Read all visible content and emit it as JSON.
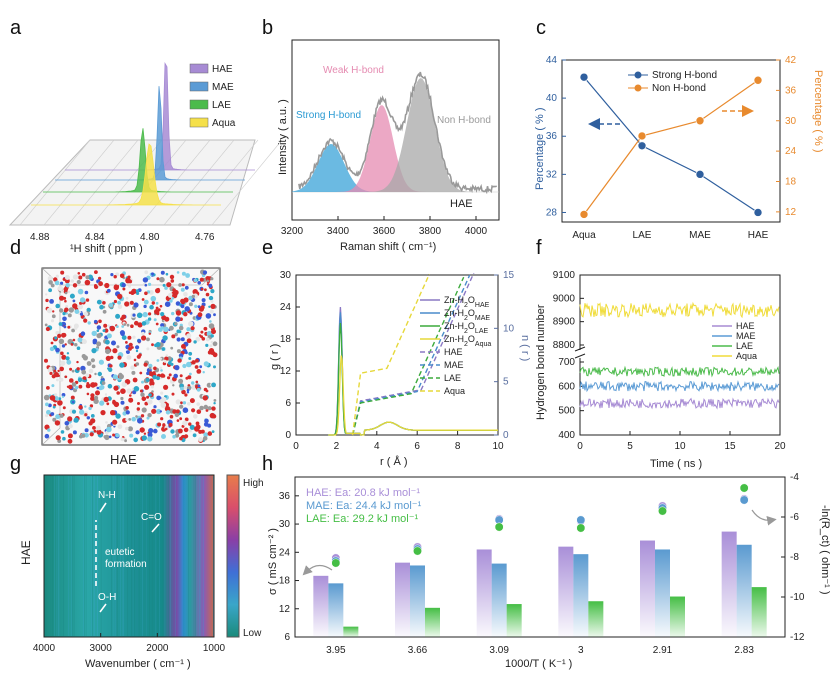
{
  "chart_data": [
    {
      "id": "a",
      "type": "area",
      "panel_label": "a",
      "xlabel": "¹H shift ( ppm )",
      "x_ticks": [
        "4.88",
        "4.84",
        "4.80",
        "4.76"
      ],
      "series": [
        {
          "name": "HAE",
          "color": "#a78bd4",
          "peak": 4.815,
          "width": 0.003
        },
        {
          "name": "MAE",
          "color": "#5b9bd5",
          "peak": 4.812,
          "width": 0.003
        },
        {
          "name": "LAE",
          "color": "#4cbb4c",
          "peak": 4.816,
          "width": 0.004
        },
        {
          "name": "Aqua",
          "color": "#f5e04a",
          "peak": 4.8,
          "width": 0.006
        }
      ]
    },
    {
      "id": "b",
      "type": "area",
      "panel_label": "b",
      "xlabel": "Raman shift ( cm⁻¹)",
      "ylabel": "Intensity ( a.u. )",
      "x_ticks": [
        3200,
        3400,
        3600,
        3800,
        4000
      ],
      "xlim": [
        3200,
        4100
      ],
      "legend_text": "HAE",
      "components": [
        {
          "name": "Strong H-bond",
          "center": 3370,
          "width": 80,
          "height": 0.32,
          "color": "#3aa3d8"
        },
        {
          "name": "Weak H-bond",
          "center": 3590,
          "width": 70,
          "height": 0.58,
          "color": "#e58bb1"
        },
        {
          "name": "Non H-bond",
          "center": 3760,
          "width": 85,
          "height": 0.76,
          "color": "#a8a8a8"
        }
      ]
    },
    {
      "id": "c",
      "type": "line",
      "panel_label": "c",
      "categories": [
        "Aqua",
        "LAE",
        "MAE",
        "HAE"
      ],
      "ylabel": "Percentage ( % )",
      "y2label": "Percentage ( % )",
      "ylim": [
        27,
        44
      ],
      "y_ticks": [
        28,
        32,
        36,
        40,
        44
      ],
      "y2lim": [
        10,
        42
      ],
      "y2_ticks": [
        12,
        18,
        24,
        30,
        36,
        42
      ],
      "series": [
        {
          "name": "Strong H-bond",
          "axis": "left",
          "color": "#2f5f9e",
          "values": [
            42.2,
            35.0,
            32.0,
            28.0
          ]
        },
        {
          "name": "Non H-bond",
          "axis": "right",
          "color": "#e88a2e",
          "values": [
            11.5,
            27.0,
            30.0,
            38.0
          ]
        }
      ]
    },
    {
      "id": "e",
      "type": "line",
      "panel_label": "e",
      "xlabel": "r ( Å )",
      "ylabel": "g ( r )",
      "y2label": "n ( r )",
      "xlim": [
        0,
        10
      ],
      "x_ticks": [
        0,
        2,
        4,
        6,
        8,
        10
      ],
      "ylim": [
        0,
        30
      ],
      "y_ticks": [
        0,
        6,
        12,
        18,
        24,
        30
      ],
      "y2lim": [
        0,
        15
      ],
      "y2_ticks": [
        0,
        5,
        10,
        15
      ],
      "legend": [
        {
          "base": "Zn-H",
          "sub1": "2",
          "mid": "O",
          "sub2": "HAE",
          "color": "#8a78c4",
          "dash": false
        },
        {
          "base": "Zn-H",
          "sub1": "2",
          "mid": "O",
          "sub2": "MAE",
          "color": "#4a8ccb",
          "dash": false
        },
        {
          "base": "Zn-H",
          "sub1": "2",
          "mid": "O",
          "sub2": "LAE",
          "color": "#3caa3c",
          "dash": false
        },
        {
          "base": "Zn-H",
          "sub1": "2",
          "mid": "O",
          "sub2": "Aqua",
          "color": "#e6d83a",
          "dash": false
        },
        {
          "base": "HAE",
          "color": "#8a78c4",
          "dash": true
        },
        {
          "base": "MAE",
          "color": "#4a8ccb",
          "dash": true
        },
        {
          "base": "LAE",
          "color": "#3caa3c",
          "dash": true
        },
        {
          "base": "Aqua",
          "color": "#e6d83a",
          "dash": true
        }
      ],
      "rdf_peaks": [
        {
          "name": "HAE",
          "color": "#8a78c4",
          "peak": 24,
          "r0": 2.2
        },
        {
          "name": "MAE",
          "color": "#4a8ccb",
          "peak": 23,
          "r0": 2.2
        },
        {
          "name": "LAE",
          "color": "#3caa3c",
          "peak": 21,
          "r0": 2.2
        },
        {
          "name": "Aqua",
          "color": "#e6d83a",
          "peak": 15,
          "r0": 2.25
        }
      ],
      "cn_curves": [
        {
          "name": "HAE",
          "color": "#8a78c4",
          "plateau": 3.2,
          "rise": 6.2
        },
        {
          "name": "MAE",
          "color": "#4a8ccb",
          "plateau": 3.1,
          "rise": 6.0
        },
        {
          "name": "LAE",
          "color": "#3caa3c",
          "plateau": 3.0,
          "rise": 5.7
        },
        {
          "name": "Aqua",
          "color": "#e6d83a",
          "plateau": 5.8,
          "rise": 4.5
        }
      ]
    },
    {
      "id": "f",
      "type": "line",
      "panel_label": "f",
      "xlabel": "Time ( ns )",
      "ylabel": "Hydrogen bond number",
      "xlim": [
        0,
        20
      ],
      "x_ticks": [
        0,
        5,
        10,
        15,
        20
      ],
      "y_ticks_lower": [
        400,
        500,
        600,
        700
      ],
      "y_ticks_upper": [
        8800,
        8900,
        9000,
        9100
      ],
      "series": [
        {
          "name": "HAE",
          "color": "#a78bd4",
          "mean": 530,
          "noise": 20
        },
        {
          "name": "MAE",
          "color": "#5b9bd5",
          "mean": 600,
          "noise": 20
        },
        {
          "name": "LAE",
          "color": "#4cbb4c",
          "mean": 660,
          "noise": 18
        },
        {
          "name": "Aqua",
          "color": "#f0dc3a",
          "mean": 8950,
          "noise": 30
        }
      ]
    },
    {
      "id": "g",
      "type": "heatmap",
      "panel_label": "g",
      "xlabel": "Wavenumber ( cm⁻¹ )",
      "ylabel": "HAE",
      "xlim": [
        4000,
        1000
      ],
      "x_ticks": [
        4000,
        3000,
        2000,
        1000
      ],
      "colorbar": {
        "high": "High",
        "low": "Low"
      },
      "annotations": [
        "N-H",
        "C=O",
        "eutetic",
        "formation",
        "O-H"
      ]
    },
    {
      "id": "h",
      "type": "bar",
      "panel_label": "h",
      "categories": [
        "3.95",
        "3.66",
        "3.09",
        "3",
        "2.91",
        "2.83"
      ],
      "xlabel": "1000/T ( K⁻¹ )",
      "ylabel": "σ ( mS cm⁻² )",
      "y2label": "-ln(R_ct) ( ohm⁻¹ )",
      "ylim": [
        6,
        40
      ],
      "y_ticks": [
        6,
        12,
        18,
        24,
        30,
        36
      ],
      "y2lim": [
        -12,
        -4
      ],
      "y2_ticks": [
        -12,
        -10,
        -8,
        -6,
        -4
      ],
      "ea": [
        "HAE: Ea: 20.8 kJ mol⁻¹",
        "MAE: Ea: 24.4 kJ mol⁻¹",
        "LAE: Ea: 29.2 kJ mol⁻¹"
      ],
      "series": [
        {
          "name": "HAE",
          "color": "#a98fd8",
          "values": [
            19,
            21.8,
            24.6,
            25.2,
            26.5,
            28.4
          ]
        },
        {
          "name": "MAE",
          "color": "#5a9ad0",
          "values": [
            17.4,
            21.2,
            21.6,
            23.6,
            24.6,
            25.6
          ]
        },
        {
          "name": "LAE",
          "color": "#45be45",
          "values": [
            8.2,
            12.2,
            13,
            13.6,
            14.6,
            16.6
          ]
        }
      ],
      "scatter": [
        {
          "name": "HAE",
          "color": "#a98fd8",
          "values": [
            -8.05,
            -7.5,
            -6.1,
            -6.2,
            -5.45,
            -5.1
          ]
        },
        {
          "name": "MAE",
          "color": "#5a9ad0",
          "values": [
            -8.2,
            -7.6,
            -6.15,
            -6.15,
            -5.55,
            -5.15
          ]
        },
        {
          "name": "LAE",
          "color": "#45be45",
          "values": [
            -8.3,
            -7.7,
            -6.5,
            -6.55,
            -5.7,
            -4.55
          ]
        }
      ]
    }
  ],
  "panel_d": {
    "label": "d",
    "caption": "HAE"
  },
  "colors": {
    "axis": "#222222",
    "arrow_blue": "#2f5f9e",
    "arrow_orange": "#e88a2e"
  }
}
